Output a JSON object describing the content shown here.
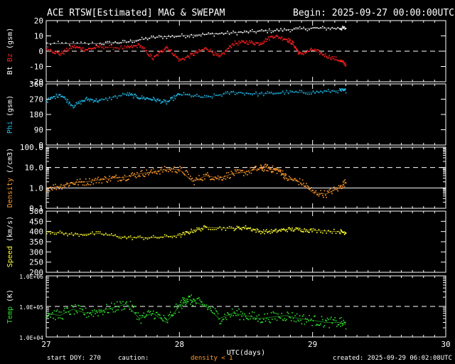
{
  "header": {
    "title": "ACE RTSW[Estimated] MAG & SWEPAM",
    "begin": "Begin: 2025-09-27 00:00:00UTC"
  },
  "footer": {
    "start_doy": "start DOY: 270",
    "caution": "caution:",
    "density_note": "density < 1",
    "created": "created: 2025-09-29 06:02:08UTC"
  },
  "colors": {
    "bt": "#ffffff",
    "bz": "#ff2020",
    "phi": "#22c0f0",
    "density": "#ff9a2e",
    "speed": "#ffff30",
    "temp": "#30e030",
    "note": "#ff9a2e"
  },
  "chart_data": {
    "type": "scatter",
    "x_axis": {
      "label": "UTC(days)",
      "range": [
        27,
        30
      ],
      "ticks": [
        "27",
        "28",
        "29",
        "30"
      ]
    },
    "panels": [
      {
        "id": "mag",
        "ylabel_parts": [
          "Bt",
          "Bz",
          "(gsm)"
        ],
        "ylabel_colors": [
          "#ffffff",
          "#ff2020",
          "#ffffff"
        ],
        "scale": "linear",
        "ylim": [
          -20,
          20
        ],
        "ticks": [
          "20",
          "10",
          "0",
          "-10",
          "-20"
        ],
        "tick_values": [
          20,
          10,
          0,
          -10,
          -20
        ],
        "ref_lines": [
          0
        ],
        "series": [
          {
            "name": "Bt",
            "color": "#ffffff",
            "x": [
              27.0,
              27.4,
              27.6,
              27.8,
              28.0,
              28.2,
              28.4,
              28.6,
              28.8,
              29.0,
              29.2,
              29.25
            ],
            "y": [
              5,
              5,
              6,
              9,
              10,
              11,
              12,
              13,
              14,
              15,
              15,
              15
            ]
          },
          {
            "name": "Bz",
            "color": "#ff2020",
            "x": [
              27.0,
              27.1,
              27.2,
              27.3,
              27.4,
              27.6,
              27.7,
              27.8,
              27.9,
              28.0,
              28.1,
              28.2,
              28.3,
              28.4,
              28.5,
              28.6,
              28.7,
              28.8,
              28.85,
              28.9,
              29.0,
              29.1,
              29.2,
              29.25
            ],
            "y": [
              2,
              -2,
              3,
              1,
              3,
              2,
              4,
              -5,
              3,
              -6,
              -2,
              2,
              -4,
              5,
              6,
              5,
              10,
              8,
              5,
              -2,
              1,
              -3,
              -6,
              -9
            ]
          }
        ]
      },
      {
        "id": "phi",
        "ylabel_parts": [
          "Phi",
          "(gsm)"
        ],
        "ylabel_colors": [
          "#22c0f0",
          "#ffffff"
        ],
        "scale": "linear",
        "ylim": [
          0,
          360
        ],
        "ticks": [
          "360",
          "270",
          "180",
          "90",
          "0"
        ],
        "tick_values": [
          360,
          270,
          180,
          90,
          0
        ],
        "ref_lines": [],
        "series": [
          {
            "name": "Phi",
            "color": "#22c0f0",
            "x": [
              27.0,
              27.1,
              27.2,
              27.3,
              27.4,
              27.6,
              27.7,
              27.8,
              27.9,
              28.0,
              28.2,
              28.4,
              28.6,
              28.8,
              29.0,
              29.2,
              29.25
            ],
            "y": [
              260,
              300,
              230,
              270,
              260,
              300,
              280,
              270,
              250,
              300,
              280,
              310,
              300,
              310,
              310,
              320,
              320
            ]
          }
        ]
      },
      {
        "id": "density",
        "ylabel_parts": [
          "Density",
          "(/cm3)"
        ],
        "ylabel_colors": [
          "#ff9a2e",
          "#ffffff"
        ],
        "scale": "log",
        "ylim": [
          0.1,
          100
        ],
        "ticks": [
          "100.0",
          "10.0",
          "1.0",
          "0.1"
        ],
        "tick_values": [
          100,
          10,
          1,
          0.1
        ],
        "ref_lines": [
          10,
          1
        ],
        "series": [
          {
            "name": "Density",
            "color": "#ff9a2e",
            "x": [
              27.0,
              27.1,
              27.2,
              27.3,
              27.4,
              27.5,
              27.6,
              27.7,
              27.8,
              27.9,
              28.0,
              28.1,
              28.2,
              28.3,
              28.4,
              28.5,
              28.6,
              28.65,
              28.7,
              28.75,
              28.8,
              28.9,
              29.0,
              29.1,
              29.2,
              29.25
            ],
            "y": [
              1.0,
              1.2,
              1.8,
              2.0,
              2.5,
              3.0,
              3.5,
              5.0,
              6.0,
              8.0,
              8.0,
              2.0,
              4.0,
              3.0,
              5.0,
              6.0,
              9.0,
              10.0,
              8.0,
              7.0,
              3.0,
              2.0,
              0.6,
              0.5,
              1.0,
              2.0
            ]
          }
        ]
      },
      {
        "id": "speed",
        "ylabel_parts": [
          "Speed",
          "(km/s)"
        ],
        "ylabel_colors": [
          "#ffff30",
          "#ffffff"
        ],
        "scale": "linear",
        "ylim": [
          200,
          500
        ],
        "ticks": [
          "500",
          "450",
          "400",
          "350",
          "300",
          "250",
          "200"
        ],
        "tick_values": [
          500,
          450,
          400,
          350,
          300,
          250,
          200
        ],
        "ref_lines": [],
        "series": [
          {
            "name": "Speed",
            "color": "#ffff30",
            "x": [
              27.0,
              27.2,
              27.4,
              27.6,
              27.8,
              28.0,
              28.1,
              28.2,
              28.4,
              28.5,
              28.6,
              28.7,
              28.8,
              28.9,
              29.0,
              29.2,
              29.25
            ],
            "y": [
              400,
              385,
              390,
              370,
              370,
              380,
              405,
              420,
              415,
              420,
              400,
              400,
              410,
              410,
              405,
              400,
              395
            ]
          }
        ]
      },
      {
        "id": "temp",
        "ylabel_parts": [
          "Temp",
          "(K)"
        ],
        "ylabel_colors": [
          "#30e030",
          "#ffffff"
        ],
        "scale": "log",
        "ylim": [
          10000,
          1000000
        ],
        "ticks": [
          "1.0E+06",
          "1.0E+05",
          "1.0E+04"
        ],
        "tick_values": [
          1000000,
          100000,
          10000
        ],
        "ref_lines": [
          100000
        ],
        "series": [
          {
            "name": "Temp",
            "color": "#30e030",
            "x": [
              27.0,
              27.1,
              27.2,
              27.3,
              27.4,
              27.5,
              27.6,
              27.7,
              27.8,
              27.9,
              28.0,
              28.05,
              28.1,
              28.2,
              28.3,
              28.4,
              28.5,
              28.6,
              28.7,
              28.8,
              28.9,
              29.0,
              29.1,
              29.2,
              29.25
            ],
            "y": [
              60000,
              50000,
              80000,
              60000,
              70000,
              90000,
              120000,
              40000,
              60000,
              30000,
              100000,
              180000,
              150000,
              100000,
              40000,
              60000,
              50000,
              40000,
              45000,
              50000,
              40000,
              35000,
              30000,
              30000,
              25000
            ]
          }
        ]
      }
    ]
  }
}
